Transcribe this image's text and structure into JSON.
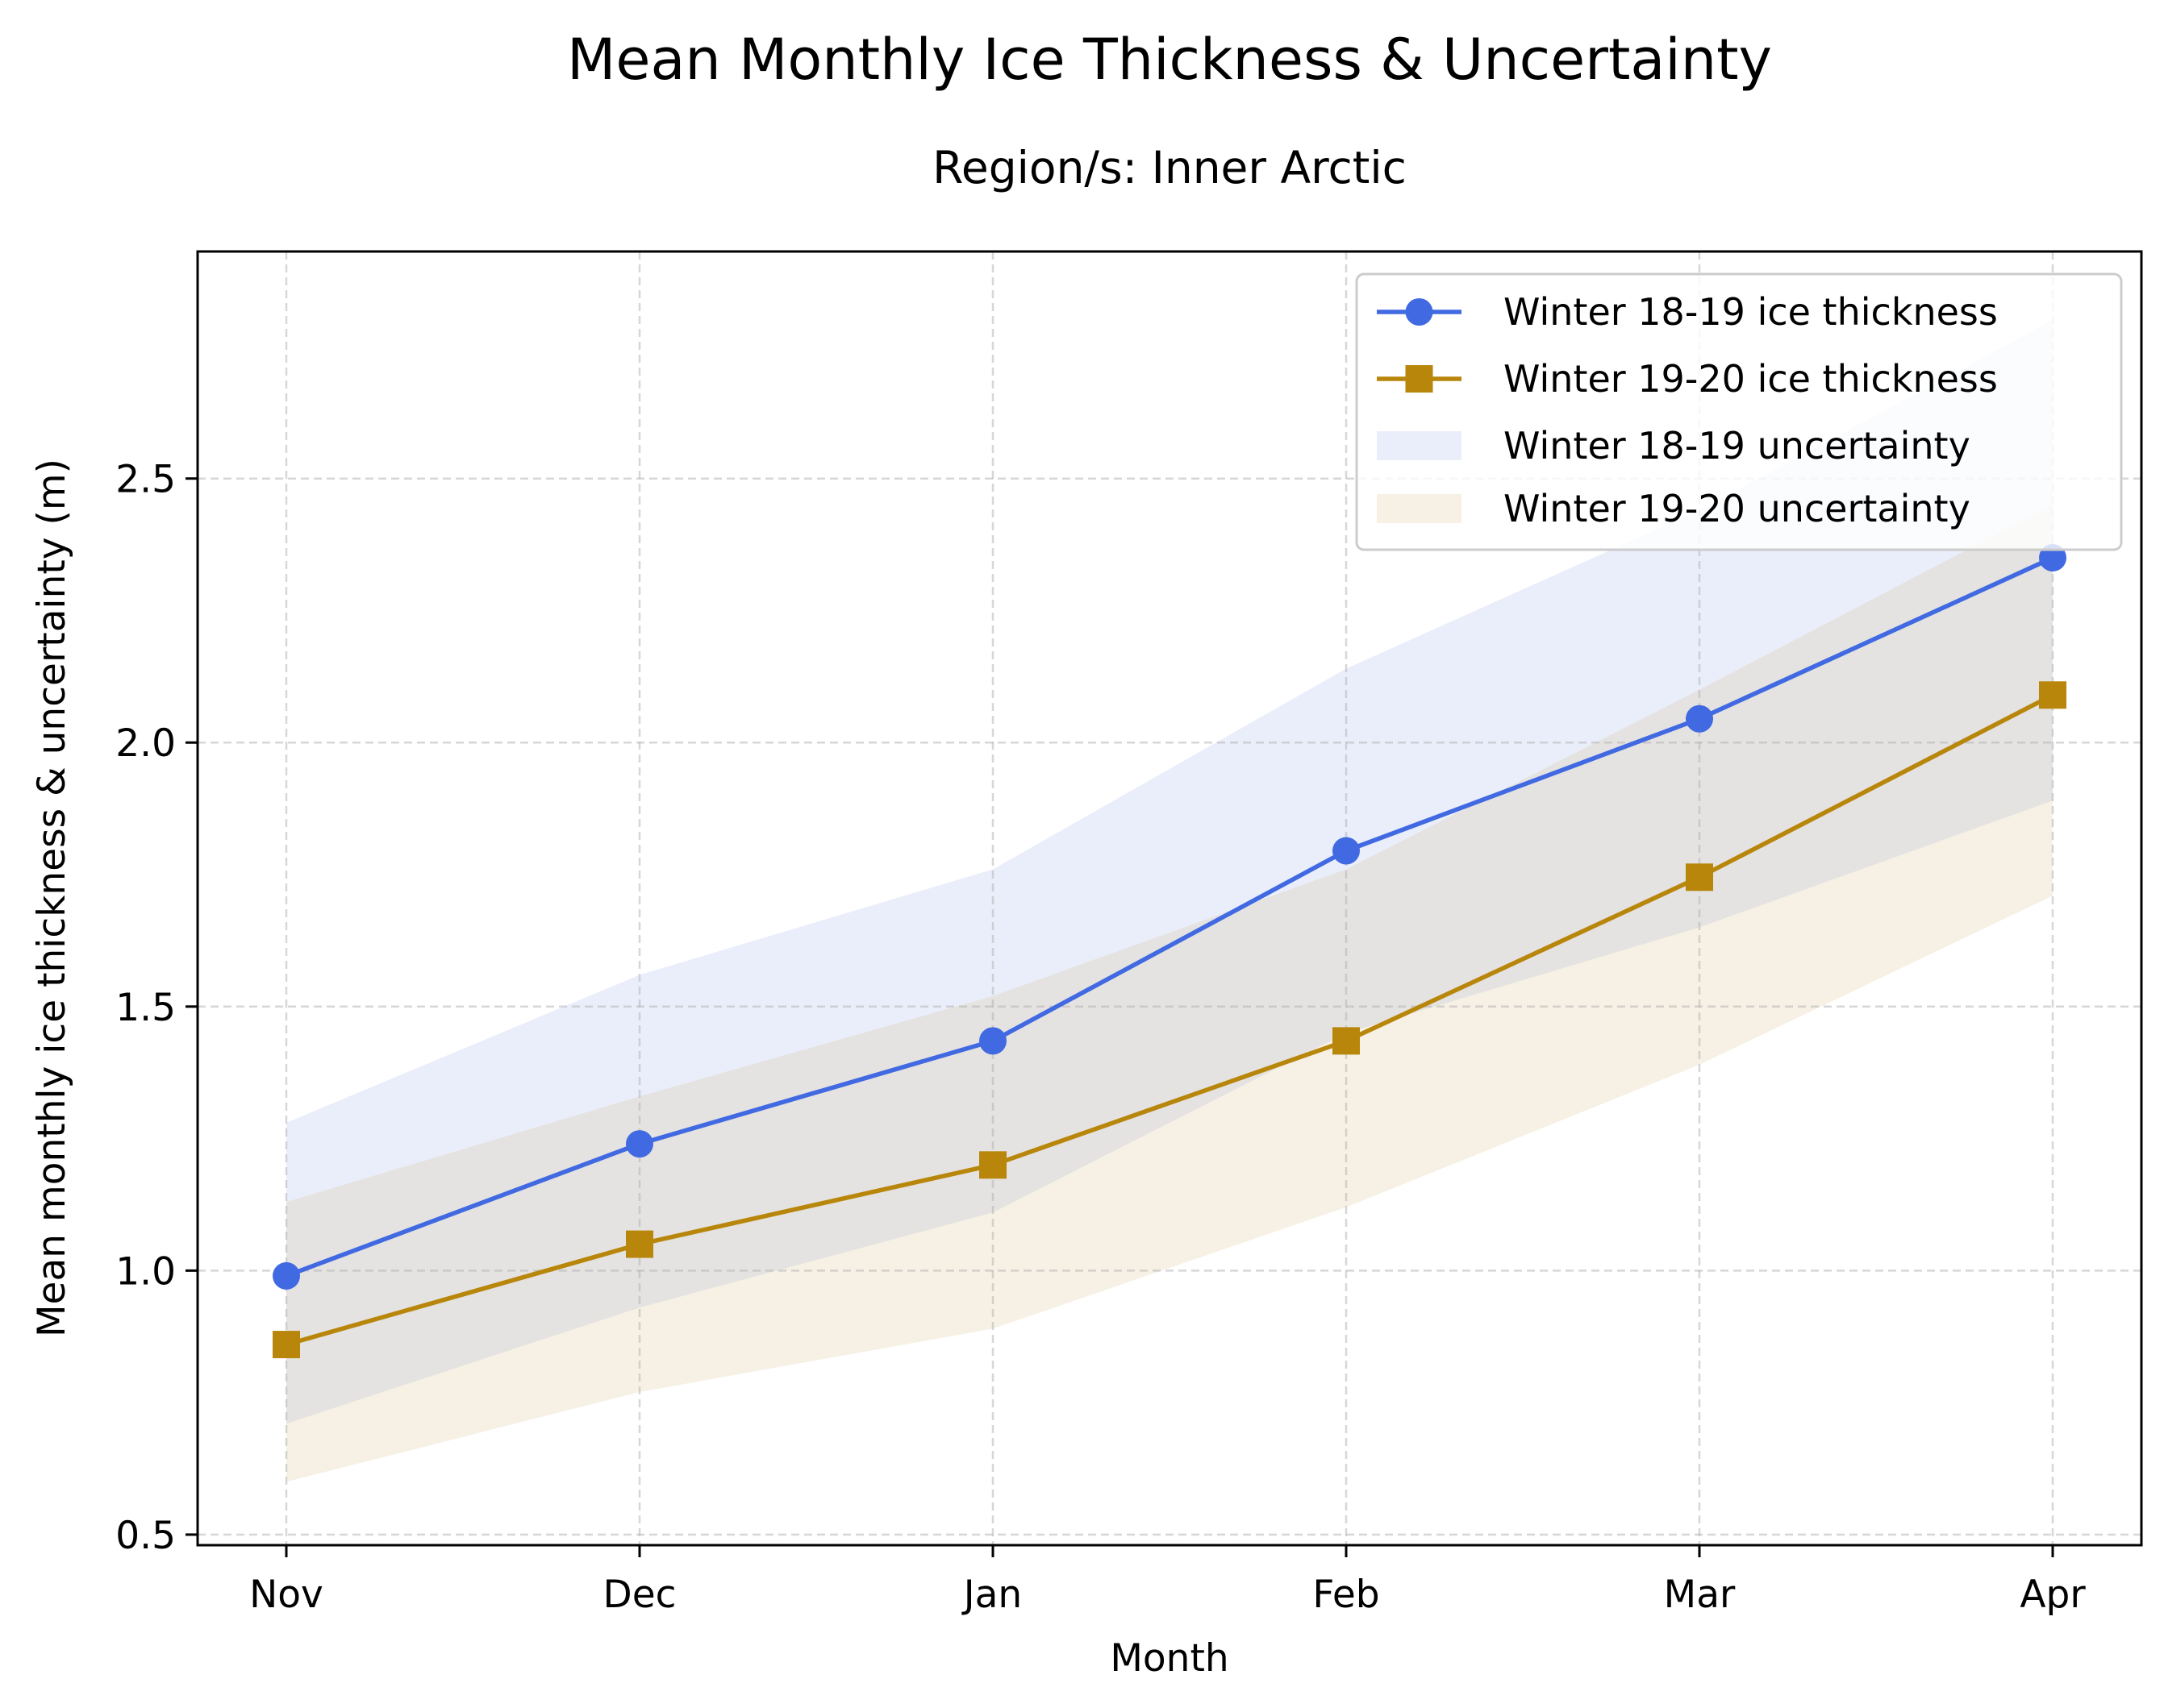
{
  "chart_data": {
    "type": "line",
    "title": "Mean Monthly Ice Thickness & Uncertainty",
    "subtitle": "Region/s: Inner Arctic",
    "xlabel": "Month",
    "ylabel": "Mean monthly ice thickness & uncertainty (m)",
    "categories": [
      "Nov",
      "Dec",
      "Jan",
      "Feb",
      "Mar",
      "Apr"
    ],
    "ylim": [
      0.48,
      2.93
    ],
    "yticks": [
      0.5,
      1.0,
      1.5,
      2.0,
      2.5
    ],
    "ytick_labels": [
      "0.5",
      "1.0",
      "1.5",
      "2.0",
      "2.5"
    ],
    "grid": true,
    "legend_position": "top-right",
    "series": [
      {
        "name": "Winter 18-19 ice thickness",
        "band_name": "Winter 18-19 uncertainty",
        "marker": "circle",
        "color": "#4169E1",
        "band_color": "#eaeefb",
        "values": [
          0.99,
          1.24,
          1.435,
          1.795,
          2.045,
          2.35
        ],
        "lower": [
          0.71,
          0.93,
          1.11,
          1.45,
          1.65,
          1.89
        ],
        "upper": [
          1.28,
          1.56,
          1.76,
          2.14,
          2.44,
          2.8
        ]
      },
      {
        "name": "Winter 19-20 ice thickness",
        "band_name": "Winter 19-20 uncertainty",
        "marker": "square",
        "color": "#B8860B",
        "band_color": "#f6f1e4",
        "values": [
          0.86,
          1.05,
          1.2,
          1.435,
          1.745,
          2.09
        ],
        "lower": [
          0.6,
          0.77,
          0.89,
          1.12,
          1.39,
          1.71
        ],
        "upper": [
          1.13,
          1.33,
          1.52,
          1.76,
          2.1,
          2.45
        ]
      }
    ],
    "overlap_color": "#e4e3e1"
  }
}
